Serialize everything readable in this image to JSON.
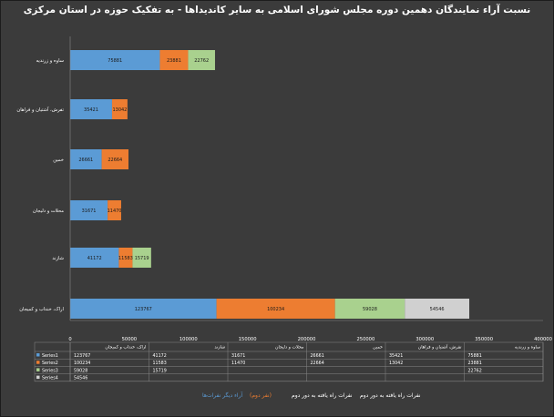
{
  "title": "نسبت آراء نمایندگان دهمین دوره مجلس شورای اسلامی به سایر کاندیداها - به تفکیک حوزه در استان مرکزی",
  "colors": {
    "series1": "#5b9bd5",
    "series2": "#ed7d31",
    "series3": "#a9d18e",
    "series4": "#d0d0d0",
    "background": "#3b3b3b",
    "gridline": "#555555"
  },
  "legend_items": [
    {
      "label": "آراء دیگر نفرات‌ها",
      "color": "#5b9bd5"
    },
    {
      "label": "(نفر دوم)",
      "color": "#ed7d31"
    },
    {
      "label": "نفرات راه یافته به دور دوم",
      "color": "#ffffff"
    },
    {
      "label": "نفرات راه یافته به دور دوم",
      "color": "#ffffff"
    }
  ],
  "chart_data": {
    "type": "bar",
    "orientation": "horizontal",
    "stacked": true,
    "title": "نسبت آراء نمایندگان دهمین دوره مجلس شورای اسلامی به سایر کاندیداها - به تفکیک حوزه در استان مرکزی",
    "categories": [
      "اراک، خنداب و کمیجان",
      "شازند",
      "محلات و دلیجان",
      "خمین",
      "تفرش، آشتیان و فراهان",
      "ساوه و زرندیه"
    ],
    "series": [
      {
        "name": "Series1",
        "values": [
          123767,
          41172,
          31671,
          26661,
          35421,
          75881
        ]
      },
      {
        "name": "Series2",
        "values": [
          100234,
          11583,
          11470,
          22664,
          13042,
          23881
        ]
      },
      {
        "name": "Series3",
        "values": [
          59028,
          15719,
          null,
          null,
          null,
          22762
        ]
      },
      {
        "name": "Series4",
        "values": [
          54546,
          null,
          null,
          null,
          null,
          null
        ]
      }
    ],
    "bar_labels": [
      [
        "123767",
        "100234",
        "59028",
        "54546"
      ],
      [
        "41172",
        "11583",
        "15719",
        ""
      ],
      [
        "31671",
        "11470",
        "",
        ""
      ],
      [
        "26661",
        "22664",
        "",
        ""
      ],
      [
        "35421",
        "13042",
        "",
        ""
      ],
      [
        "75881",
        "23881",
        "22762",
        ""
      ]
    ],
    "xlim": [
      0,
      400000
    ],
    "xticks": [
      "0",
      "50000",
      "100000",
      "150000",
      "200000",
      "250000",
      "300000",
      "350000",
      "400000"
    ],
    "grid": false,
    "data_table": true
  }
}
